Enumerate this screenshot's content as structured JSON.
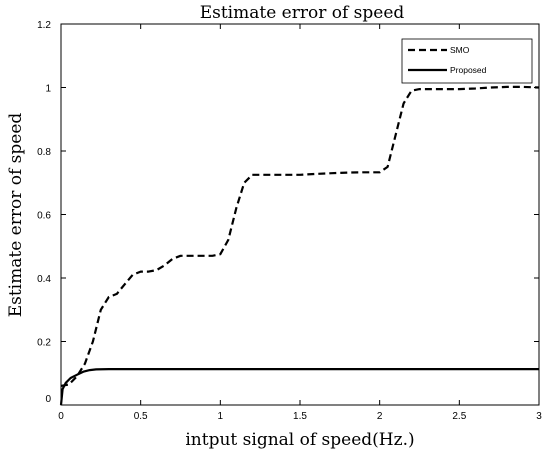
{
  "chart_data": {
    "type": "line",
    "title": "Estimate error of speed",
    "xlabel": "intput signal of speed(Hz.)",
    "ylabel": "Estimate error of speed",
    "xlim": [
      0,
      3
    ],
    "ylim": [
      0,
      1.2
    ],
    "xticks": [
      "0",
      "0.5",
      "1",
      "1.5",
      "2",
      "2.5",
      "3"
    ],
    "yticks": [
      "0",
      "0.2",
      "0.4",
      "0.6",
      "0.8",
      "1",
      "1.2"
    ],
    "grid": false,
    "legend_position": "top-right",
    "series": [
      {
        "name": "SMO",
        "style": "dashed",
        "color": "#000000",
        "x": [
          0,
          0.05,
          0.1,
          0.15,
          0.2,
          0.25,
          0.3,
          0.35,
          0.4,
          0.45,
          0.5,
          0.55,
          0.6,
          0.65,
          0.7,
          0.75,
          0.8,
          0.85,
          0.9,
          0.95,
          1.0,
          1.05,
          1.1,
          1.15,
          1.2,
          1.25,
          1.3,
          1.4,
          1.5,
          1.6,
          1.7,
          1.8,
          1.9,
          2.0,
          2.05,
          2.1,
          2.15,
          2.2,
          2.25,
          2.3,
          2.4,
          2.5,
          2.6,
          2.7,
          2.8,
          2.9,
          3.0
        ],
        "y": [
          0.06,
          0.065,
          0.09,
          0.13,
          0.2,
          0.3,
          0.34,
          0.35,
          0.38,
          0.41,
          0.42,
          0.42,
          0.425,
          0.44,
          0.46,
          0.47,
          0.47,
          0.47,
          0.47,
          0.47,
          0.475,
          0.52,
          0.62,
          0.7,
          0.725,
          0.725,
          0.725,
          0.725,
          0.725,
          0.728,
          0.73,
          0.732,
          0.733,
          0.733,
          0.75,
          0.85,
          0.95,
          0.99,
          0.995,
          0.995,
          0.995,
          0.995,
          0.997,
          1.0,
          1.002,
          1.002,
          1.0
        ]
      },
      {
        "name": "Proposed",
        "style": "solid",
        "color": "#000000",
        "x": [
          0,
          0.01,
          0.03,
          0.06,
          0.1,
          0.14,
          0.18,
          0.22,
          0.3,
          0.4,
          0.5,
          1.0,
          1.5,
          2.0,
          2.5,
          3.0
        ],
        "y": [
          0.0,
          0.05,
          0.07,
          0.085,
          0.095,
          0.105,
          0.11,
          0.112,
          0.113,
          0.113,
          0.113,
          0.113,
          0.113,
          0.113,
          0.113,
          0.113
        ]
      }
    ]
  }
}
